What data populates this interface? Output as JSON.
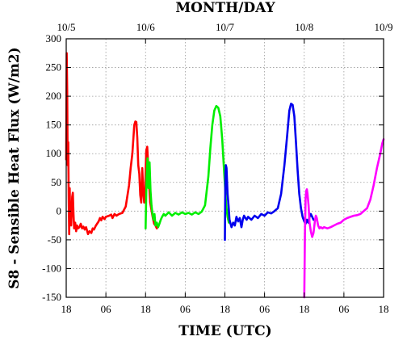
{
  "chart_data": {
    "type": "line",
    "title": "",
    "ylabel": "S8 - Sensible Heat Flux (W/m2)",
    "xlabel": "TIME (UTC)",
    "x2label": "MONTH/DAY",
    "x_unit": "hours since first bottom tick (18 UTC)",
    "xlim": [
      0,
      96
    ],
    "ylim": [
      -150,
      300
    ],
    "y_ticks": [
      -150,
      -100,
      -50,
      0,
      50,
      100,
      150,
      200,
      250,
      300
    ],
    "x_ticks": [
      {
        "x": 0,
        "label": "18"
      },
      {
        "x": 12,
        "label": "06"
      },
      {
        "x": 24,
        "label": "18"
      },
      {
        "x": 36,
        "label": "06"
      },
      {
        "x": 48,
        "label": "18"
      },
      {
        "x": 60,
        "label": "06"
      },
      {
        "x": 72,
        "label": "18"
      },
      {
        "x": 84,
        "label": "06"
      },
      {
        "x": 96,
        "label": "18"
      }
    ],
    "x2_ticks": [
      {
        "x": 0,
        "label": "10/5"
      },
      {
        "x": 24,
        "label": "10/6"
      },
      {
        "x": 48,
        "label": "10/7"
      },
      {
        "x": 72,
        "label": "10/8"
      },
      {
        "x": 96,
        "label": "10/9"
      }
    ],
    "grid": true,
    "series": [
      {
        "color": "#ff0000",
        "points": [
          [
            0.0,
            90
          ],
          [
            0.15,
            275
          ],
          [
            0.3,
            210
          ],
          [
            0.45,
            80
          ],
          [
            0.6,
            120
          ],
          [
            0.75,
            20
          ],
          [
            0.9,
            -40
          ],
          [
            1.05,
            40
          ],
          [
            1.2,
            -10
          ],
          [
            1.5,
            -25
          ],
          [
            1.8,
            25
          ],
          [
            2.0,
            32
          ],
          [
            2.2,
            -5
          ],
          [
            2.4,
            -30
          ],
          [
            2.7,
            -20
          ],
          [
            3.0,
            -35
          ],
          [
            3.3,
            -25
          ],
          [
            3.6,
            -30
          ],
          [
            4.0,
            -28
          ],
          [
            4.4,
            -22
          ],
          [
            4.8,
            -30
          ],
          [
            5.2,
            -27
          ],
          [
            5.6,
            -32
          ],
          [
            6.0,
            -28
          ],
          [
            6.6,
            -40
          ],
          [
            7.0,
            -35
          ],
          [
            7.6,
            -38
          ],
          [
            8.0,
            -30
          ],
          [
            8.4,
            -32
          ],
          [
            9.0,
            -25
          ],
          [
            9.8,
            -18
          ],
          [
            10.2,
            -12
          ],
          [
            10.6,
            -16
          ],
          [
            11.0,
            -10
          ],
          [
            11.6,
            -14
          ],
          [
            12.0,
            -10
          ],
          [
            13.0,
            -8
          ],
          [
            13.6,
            -6
          ],
          [
            14.0,
            -12
          ],
          [
            14.6,
            -5
          ],
          [
            15.2,
            -8
          ],
          [
            16.0,
            -5
          ],
          [
            17.0,
            -3
          ],
          [
            18.0,
            8
          ],
          [
            19.0,
            45
          ],
          [
            19.5,
            75
          ],
          [
            20.0,
            100
          ],
          [
            20.3,
            125
          ],
          [
            20.6,
            150
          ],
          [
            20.9,
            156
          ],
          [
            21.2,
            155
          ],
          [
            21.5,
            128
          ],
          [
            21.8,
            80
          ],
          [
            22.1,
            65
          ],
          [
            22.4,
            28
          ],
          [
            22.7,
            15
          ],
          [
            23.0,
            75
          ],
          [
            23.3,
            32
          ],
          [
            23.6,
            15
          ],
          [
            23.9,
            40
          ],
          [
            24.2,
            105
          ],
          [
            24.5,
            112
          ],
          [
            24.8,
            80
          ],
          [
            25.1,
            45
          ],
          [
            25.4,
            15
          ],
          [
            25.7,
            5
          ],
          [
            26.0,
            -5
          ],
          [
            26.3,
            -15
          ],
          [
            26.6,
            -22
          ],
          [
            27.0,
            -25
          ],
          [
            27.4,
            -30
          ]
        ]
      },
      {
        "color": "#00ee00",
        "points": [
          [
            24.0,
            -30
          ],
          [
            24.3,
            60
          ],
          [
            24.6,
            92
          ],
          [
            24.9,
            40
          ],
          [
            25.2,
            85
          ],
          [
            25.5,
            35
          ],
          [
            25.8,
            10
          ],
          [
            26.1,
            -5
          ],
          [
            26.4,
            -15
          ],
          [
            26.7,
            -5
          ],
          [
            27.0,
            -25
          ],
          [
            27.4,
            -20
          ],
          [
            27.8,
            -28
          ],
          [
            28.2,
            -22
          ],
          [
            28.6,
            -15
          ],
          [
            29.0,
            -10
          ],
          [
            29.5,
            -5
          ],
          [
            30.0,
            -8
          ],
          [
            31.0,
            -2
          ],
          [
            32.0,
            -8
          ],
          [
            33.0,
            -3
          ],
          [
            34.0,
            -6
          ],
          [
            35.0,
            -2
          ],
          [
            36.0,
            -5
          ],
          [
            37.0,
            -3
          ],
          [
            38.0,
            -6
          ],
          [
            39.0,
            -2
          ],
          [
            40.0,
            -5
          ],
          [
            41.0,
            -1
          ],
          [
            42.0,
            10
          ],
          [
            43.0,
            60
          ],
          [
            43.6,
            110
          ],
          [
            44.2,
            150
          ],
          [
            44.8,
            175
          ],
          [
            45.4,
            183
          ],
          [
            46.0,
            180
          ],
          [
            46.6,
            165
          ],
          [
            47.2,
            125
          ],
          [
            47.8,
            65
          ],
          [
            48.4,
            10
          ],
          [
            48.8,
            -10
          ],
          [
            49.2,
            -20
          ]
        ]
      },
      {
        "color": "#0000ee",
        "points": [
          [
            48.0,
            -50
          ],
          [
            48.15,
            65
          ],
          [
            48.3,
            80
          ],
          [
            48.5,
            75
          ],
          [
            48.8,
            30
          ],
          [
            49.1,
            10
          ],
          [
            49.4,
            -15
          ],
          [
            49.7,
            -22
          ],
          [
            50.0,
            -28
          ],
          [
            50.5,
            -20
          ],
          [
            51.0,
            -25
          ],
          [
            51.5,
            -10
          ],
          [
            52.0,
            -18
          ],
          [
            52.5,
            -12
          ],
          [
            53.0,
            -28
          ],
          [
            53.4,
            -15
          ],
          [
            53.8,
            -8
          ],
          [
            54.2,
            -12
          ],
          [
            54.6,
            -15
          ],
          [
            55.0,
            -10
          ],
          [
            56.0,
            -15
          ],
          [
            57.0,
            -8
          ],
          [
            58.0,
            -12
          ],
          [
            59.0,
            -5
          ],
          [
            60.0,
            -8
          ],
          [
            61.0,
            -2
          ],
          [
            62.0,
            -4
          ],
          [
            63.0,
            0
          ],
          [
            64.0,
            5
          ],
          [
            65.0,
            30
          ],
          [
            66.0,
            80
          ],
          [
            66.8,
            130
          ],
          [
            67.5,
            175
          ],
          [
            68.0,
            187
          ],
          [
            68.5,
            185
          ],
          [
            69.0,
            165
          ],
          [
            69.5,
            120
          ],
          [
            70.0,
            70
          ],
          [
            70.5,
            30
          ],
          [
            71.0,
            5
          ],
          [
            71.5,
            -10
          ],
          [
            72.0,
            -18
          ],
          [
            72.4,
            -22
          ],
          [
            72.8,
            -15
          ],
          [
            73.2,
            -20
          ],
          [
            73.6,
            -10
          ],
          [
            74.0,
            -5
          ],
          [
            74.4,
            -10
          ],
          [
            74.8,
            -15
          ]
        ]
      },
      {
        "color": "#ff00ff",
        "points": [
          [
            72.0,
            -150
          ],
          [
            72.2,
            -40
          ],
          [
            72.4,
            20
          ],
          [
            72.6,
            35
          ],
          [
            72.8,
            38
          ],
          [
            73.0,
            30
          ],
          [
            73.3,
            10
          ],
          [
            73.6,
            -20
          ],
          [
            74.0,
            -35
          ],
          [
            74.4,
            -45
          ],
          [
            74.8,
            -38
          ],
          [
            75.2,
            -18
          ],
          [
            75.5,
            -8
          ],
          [
            75.8,
            -12
          ],
          [
            76.2,
            -25
          ],
          [
            76.6,
            -30
          ],
          [
            77.0,
            -28
          ],
          [
            77.5,
            -30
          ],
          [
            78.0,
            -28
          ],
          [
            79.0,
            -30
          ],
          [
            80.0,
            -28
          ],
          [
            81.0,
            -25
          ],
          [
            82.0,
            -22
          ],
          [
            83.0,
            -20
          ],
          [
            84.0,
            -15
          ],
          [
            85.0,
            -12
          ],
          [
            86.0,
            -10
          ],
          [
            87.0,
            -8
          ],
          [
            88.0,
            -7
          ],
          [
            89.0,
            -5
          ],
          [
            90.0,
            0
          ],
          [
            91.0,
            5
          ],
          [
            92.0,
            20
          ],
          [
            93.0,
            45
          ],
          [
            94.0,
            75
          ],
          [
            95.0,
            100
          ],
          [
            95.6,
            118
          ],
          [
            96.0,
            125
          ]
        ]
      }
    ]
  }
}
